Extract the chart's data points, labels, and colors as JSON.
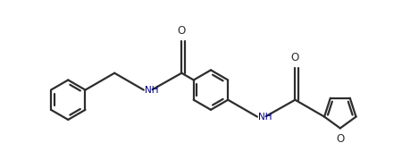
{
  "bg_color": "#ffffff",
  "line_color": "#2d2d2d",
  "atom_color": "#00008B",
  "bond_lw": 1.6,
  "figsize": [
    4.5,
    1.79
  ],
  "dpi": 100,
  "xlim": [
    0.0,
    9.0
  ],
  "ylim": [
    -0.5,
    3.5
  ]
}
